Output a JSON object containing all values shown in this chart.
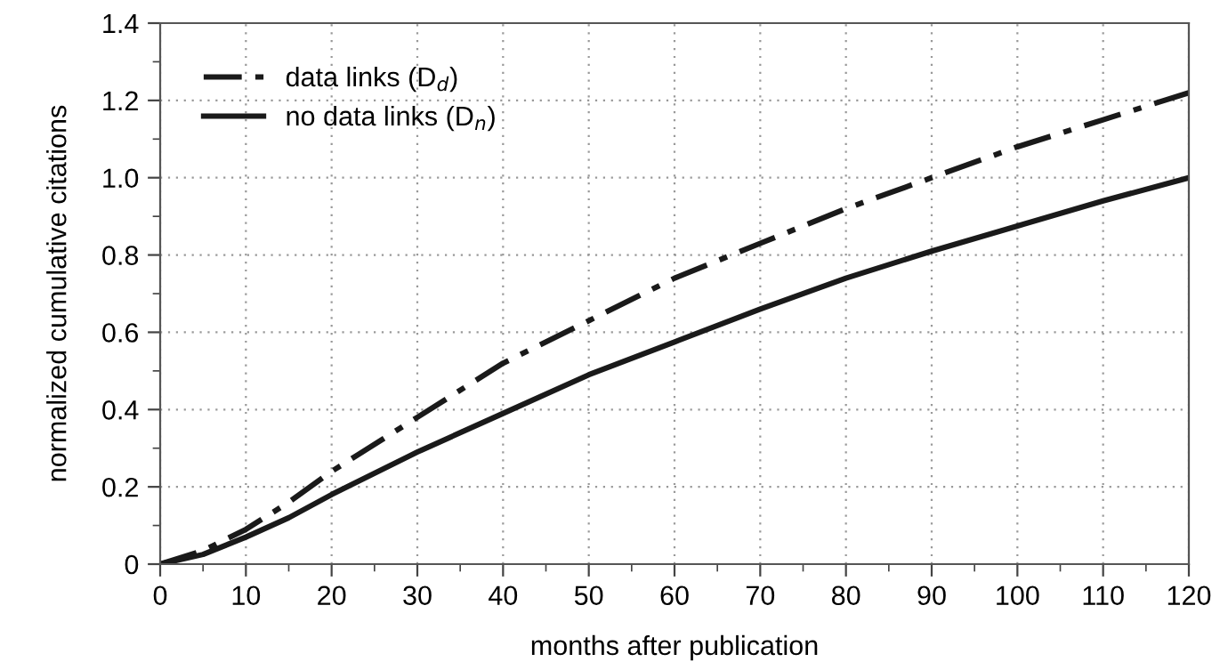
{
  "chart_data": {
    "type": "line",
    "xlabel": "months after publication",
    "ylabel": "normalized cumulative citations",
    "series": [
      {
        "name": "data links (D$_{d}$)",
        "color": "#1a1a1a",
        "line_style": "dashdot",
        "x": [
          0,
          5,
          10,
          15,
          20,
          30,
          40,
          50,
          60,
          70,
          80,
          90,
          100,
          110,
          120
        ],
        "values": [
          0,
          0.035,
          0.09,
          0.16,
          0.24,
          0.38,
          0.52,
          0.63,
          0.74,
          0.83,
          0.92,
          1.0,
          1.08,
          1.15,
          1.22
        ]
      },
      {
        "name": "no data links (D$_{n}$)",
        "color": "#1a1a1a",
        "line_style": "solid",
        "x": [
          0,
          5,
          10,
          15,
          20,
          30,
          40,
          50,
          60,
          70,
          80,
          90,
          100,
          110,
          120
        ],
        "values": [
          0,
          0.025,
          0.07,
          0.12,
          0.18,
          0.29,
          0.39,
          0.49,
          0.575,
          0.66,
          0.74,
          0.81,
          0.875,
          0.94,
          1.0
        ]
      }
    ],
    "xlim": [
      0,
      120
    ],
    "xticks": [
      0,
      10,
      20,
      30,
      40,
      50,
      60,
      70,
      80,
      90,
      100,
      110,
      120
    ],
    "ylim": [
      0,
      1.4
    ],
    "yticks": [
      0,
      0.2,
      0.4,
      0.6,
      0.8,
      {
        "value": 1,
        "label": "1.0"
      },
      1.2,
      1.4
    ],
    "grid": true,
    "legend": "top left",
    "marker": "none"
  }
}
